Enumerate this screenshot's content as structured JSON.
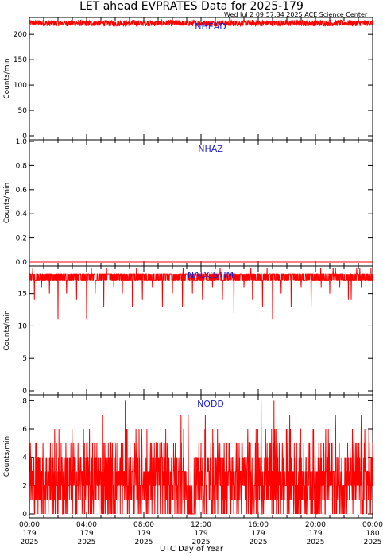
{
  "title": "LET ahead EVPRATES Data for 2025-179",
  "timestamp": "Wed Jul  2 09:57:34 2025 ACE Science Center",
  "x_axis_title": "UTC Day of Year",
  "colors": {
    "series": "#ff0000",
    "panel_title": "#1f1fd0",
    "axis": "#000000"
  },
  "chart_data": [
    {
      "type": "line",
      "title": "NHEAD",
      "ylabel": "Counts/min",
      "ylim": [
        0,
        230
      ],
      "yticks": [
        0,
        50,
        100,
        150,
        200
      ],
      "xlim": [
        0,
        24
      ],
      "baseline": 222,
      "spread": 6,
      "dips": [],
      "grid": false
    },
    {
      "type": "line",
      "title": "NHAZ",
      "ylabel": "Counts/min",
      "ylim": [
        0,
        1
      ],
      "yticks": [
        0.0,
        0.2,
        0.4,
        0.6,
        0.8,
        1.0
      ],
      "xlim": [
        0,
        24
      ],
      "baseline": 0,
      "spread": 0,
      "dips": [],
      "grid": false
    },
    {
      "type": "line",
      "title": "NADCSTIM",
      "ylabel": "Counts/min",
      "ylim": [
        0,
        19
      ],
      "yticks": [
        0,
        5,
        10,
        15
      ],
      "xlim": [
        0,
        24
      ],
      "baseline": 18,
      "spread": 1,
      "dips": [
        [
          0.35,
          14
        ],
        [
          0.85,
          16
        ],
        [
          1.4,
          15
        ],
        [
          2.0,
          11
        ],
        [
          2.6,
          15
        ],
        [
          3.3,
          14
        ],
        [
          4.0,
          11
        ],
        [
          4.6,
          15
        ],
        [
          5.2,
          13
        ],
        [
          5.9,
          16
        ],
        [
          6.5,
          15
        ],
        [
          7.2,
          13
        ],
        [
          7.9,
          14
        ],
        [
          8.6,
          16
        ],
        [
          9.3,
          13
        ],
        [
          10.0,
          15
        ],
        [
          10.7,
          13
        ],
        [
          11.4,
          15
        ],
        [
          12.1,
          14
        ],
        [
          12.8,
          16
        ],
        [
          13.5,
          14
        ],
        [
          14.3,
          12
        ],
        [
          15.0,
          16
        ],
        [
          15.6,
          14
        ],
        [
          16.3,
          13
        ],
        [
          17.0,
          11
        ],
        [
          17.6,
          15
        ],
        [
          18.3,
          13
        ],
        [
          19.0,
          16
        ],
        [
          19.7,
          13
        ],
        [
          20.4,
          16
        ],
        [
          21.0,
          15
        ],
        [
          21.7,
          16
        ],
        [
          22.3,
          14
        ],
        [
          22.5,
          14
        ],
        [
          23.2,
          16
        ]
      ],
      "grid": false
    },
    {
      "type": "line",
      "title": "NODD",
      "ylabel": "Counts/min",
      "ylim": [
        0,
        8.3
      ],
      "yticks": [
        0,
        2,
        4,
        6,
        8
      ],
      "xlim": [
        0,
        24
      ],
      "baseline": 2.5,
      "spread": 1.5,
      "dips": [],
      "peaks": [
        [
          6.7,
          8
        ],
        [
          16.2,
          8
        ],
        [
          17.1,
          8
        ],
        [
          10.6,
          7
        ],
        [
          12.3,
          7
        ],
        [
          11.1,
          7
        ],
        [
          18.2,
          7
        ],
        [
          21.4,
          7
        ],
        [
          23.2,
          7
        ],
        [
          5.1,
          7
        ]
      ],
      "grid": false
    }
  ],
  "x_ticks": [
    {
      "hour": 0,
      "l1": "00:00",
      "l2": "179",
      "l3": "2025"
    },
    {
      "hour": 4,
      "l1": "04:00",
      "l2": "179",
      "l3": "2025"
    },
    {
      "hour": 8,
      "l1": "08:00",
      "l2": "179",
      "l3": "2025"
    },
    {
      "hour": 12,
      "l1": "12:00",
      "l2": "179",
      "l3": "2025"
    },
    {
      "hour": 16,
      "l1": "16:00",
      "l2": "179",
      "l3": "2025"
    },
    {
      "hour": 20,
      "l1": "20:00",
      "l2": "179",
      "l3": "2025"
    },
    {
      "hour": 24,
      "l1": "00:00",
      "l2": "180",
      "l3": "2025"
    }
  ]
}
